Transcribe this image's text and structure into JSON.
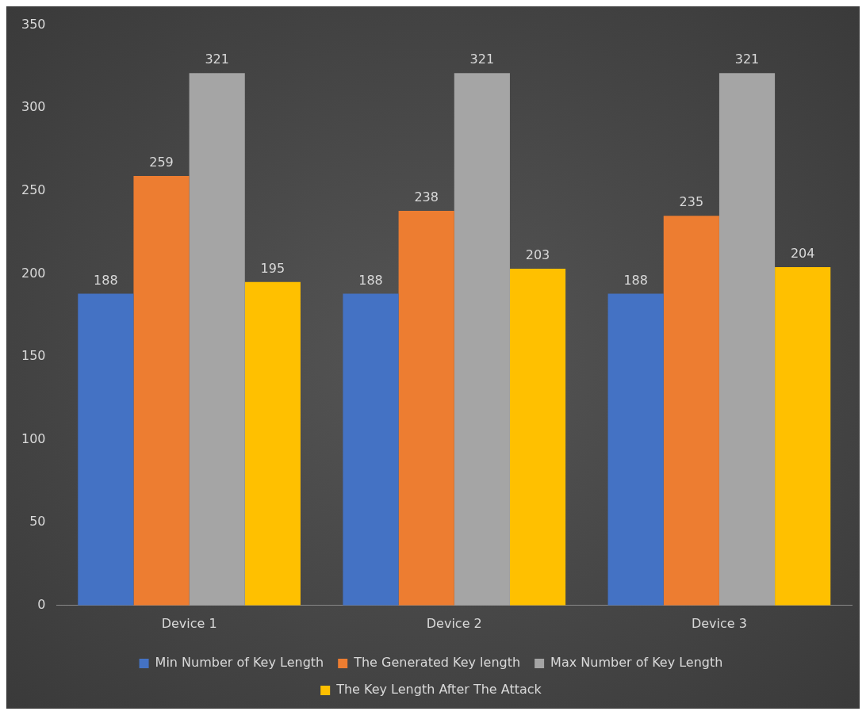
{
  "chart_data": {
    "type": "bar",
    "categories": [
      "Device 1",
      "Device 2",
      "Device 3"
    ],
    "series": [
      {
        "name": "Min Number of Key Length",
        "color": "#4472c4",
        "values": [
          188,
          188,
          188
        ]
      },
      {
        "name": "The Generated Key length",
        "color": "#ed7d31",
        "values": [
          259,
          238,
          235
        ]
      },
      {
        "name": "Max Number of Key Length",
        "color": "#a5a5a5",
        "values": [
          321,
          321,
          321
        ]
      },
      {
        "name": "The Key Length After The Attack",
        "color": "#ffc000",
        "values": [
          195,
          203,
          204
        ]
      }
    ],
    "ylim": [
      0,
      350
    ],
    "yticks": [
      0,
      50,
      100,
      150,
      200,
      250,
      300,
      350
    ],
    "grid": false,
    "legend": "bottom",
    "data_labels": true
  }
}
